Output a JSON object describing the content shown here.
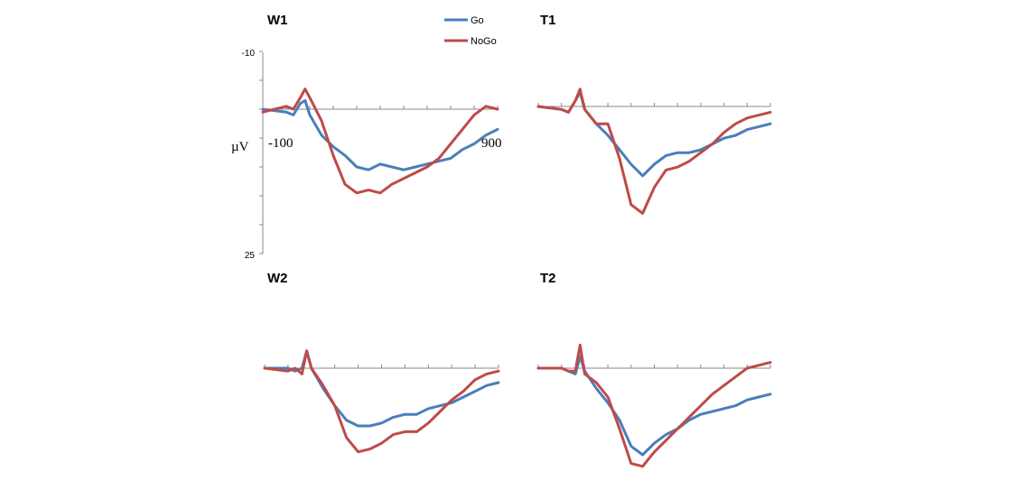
{
  "chart_data": {
    "type": "line",
    "x_range": [
      -100,
      900
    ],
    "y_range": [
      -10,
      25
    ],
    "y_inverted": true,
    "y_unit": "µV",
    "x_start_label": "-100",
    "x_end_label": "900",
    "y_top_label": "-10",
    "y_bottom_label": "25",
    "legend": [
      {
        "name": "Go",
        "color": "#4a7ebb"
      },
      {
        "name": "NoGo",
        "color": "#be4b48"
      }
    ],
    "panels": [
      {
        "title": "W1",
        "series": [
          {
            "name": "Go",
            "x": [
              -100,
              0,
              30,
              60,
              80,
              100,
              150,
              200,
              250,
              300,
              350,
              400,
              450,
              500,
              550,
              600,
              650,
              700,
              750,
              800,
              850,
              900
            ],
            "y": [
              0,
              0.5,
              1,
              -1,
              -1.5,
              1,
              4.5,
              6.5,
              8,
              10,
              10.5,
              9.5,
              10,
              10.5,
              10,
              9.5,
              9,
              8.5,
              7,
              6,
              4.5,
              3.5
            ]
          },
          {
            "name": "NoGo",
            "x": [
              -100,
              -50,
              0,
              30,
              60,
              80,
              100,
              150,
              200,
              250,
              300,
              350,
              400,
              450,
              500,
              550,
              600,
              650,
              700,
              750,
              800,
              850,
              900
            ],
            "y": [
              0.5,
              0,
              -0.5,
              0,
              -2,
              -3.5,
              -2,
              2,
              8,
              13,
              14.5,
              14,
              14.5,
              13,
              12,
              11,
              10,
              8.5,
              6,
              3.5,
              1,
              -0.5,
              0
            ]
          }
        ]
      },
      {
        "title": "T1",
        "series": [
          {
            "name": "Go",
            "x": [
              -100,
              0,
              30,
              60,
              80,
              100,
              150,
              200,
              250,
              300,
              350,
              400,
              450,
              500,
              550,
              600,
              650,
              700,
              750,
              800,
              850,
              900
            ],
            "y": [
              0,
              0.5,
              1,
              -1,
              -2.5,
              0.5,
              3,
              5,
              7.5,
              10,
              12,
              10,
              8.5,
              8,
              8,
              7.5,
              6.5,
              5.5,
              5,
              4,
              3.5,
              3
            ]
          },
          {
            "name": "NoGo",
            "x": [
              -100,
              0,
              30,
              60,
              80,
              100,
              150,
              200,
              250,
              300,
              350,
              400,
              450,
              500,
              550,
              600,
              650,
              700,
              750,
              800,
              850,
              900
            ],
            "y": [
              0,
              0.5,
              1,
              -1,
              -3,
              0.5,
              3,
              3,
              9,
              17,
              18.5,
              14,
              11,
              10.5,
              9.5,
              8,
              6.5,
              4.5,
              3,
              2,
              1.5,
              1
            ]
          }
        ]
      },
      {
        "title": "W2",
        "series": [
          {
            "name": "Go",
            "x": [
              -100,
              0,
              30,
              60,
              80,
              100,
              150,
              200,
              250,
              300,
              350,
              400,
              450,
              500,
              550,
              600,
              650,
              700,
              750,
              800,
              850,
              900
            ],
            "y": [
              0,
              0,
              0.5,
              0,
              -3,
              0,
              3.5,
              6.5,
              9,
              10,
              10,
              9.5,
              8.5,
              8,
              8,
              7,
              6.5,
              6,
              5,
              4,
              3,
              2.5
            ]
          },
          {
            "name": "NoGo",
            "x": [
              -100,
              0,
              30,
              60,
              80,
              100,
              150,
              200,
              250,
              300,
              350,
              400,
              450,
              500,
              550,
              600,
              650,
              700,
              750,
              800,
              850,
              900
            ],
            "y": [
              0,
              0.5,
              0,
              1,
              -3,
              0,
              3,
              6.5,
              12,
              14.5,
              14,
              13,
              11.5,
              11,
              11,
              9.5,
              7.5,
              5.5,
              4,
              2,
              1,
              0.5
            ]
          }
        ]
      },
      {
        "title": "T2",
        "series": [
          {
            "name": "Go",
            "x": [
              -100,
              0,
              30,
              60,
              80,
              100,
              150,
              200,
              250,
              300,
              350,
              400,
              450,
              500,
              550,
              600,
              650,
              700,
              750,
              800,
              850,
              900
            ],
            "y": [
              0,
              0,
              0.5,
              1,
              -2,
              0.5,
              3.5,
              6,
              9,
              13.5,
              15,
              13,
              11.5,
              10.5,
              9,
              8,
              7.5,
              7,
              6.5,
              5.5,
              5,
              4.5
            ]
          },
          {
            "name": "NoGo",
            "x": [
              -100,
              0,
              30,
              60,
              80,
              100,
              150,
              200,
              250,
              300,
              350,
              400,
              450,
              500,
              550,
              600,
              650,
              700,
              750,
              800,
              850,
              900
            ],
            "y": [
              0,
              0,
              0.5,
              0.5,
              -4,
              1,
              2.5,
              5,
              10.5,
              16.5,
              17,
              14.5,
              12.5,
              10.5,
              8.5,
              6.5,
              4.5,
              3,
              1.5,
              0,
              -0.5,
              -1
            ]
          }
        ]
      }
    ]
  }
}
